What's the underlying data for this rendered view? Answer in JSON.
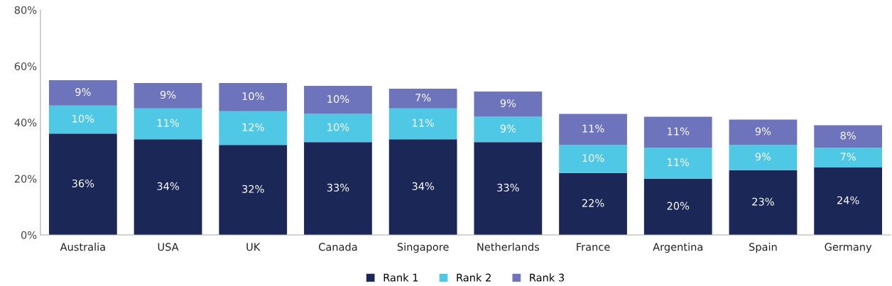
{
  "chart_data": {
    "type": "bar",
    "stacked": true,
    "categories": [
      "Australia",
      "USA",
      "UK",
      "Canada",
      "Singapore",
      "Netherlands",
      "France",
      "Argentina",
      "Spain",
      "Germany"
    ],
    "series": [
      {
        "name": "Rank 1",
        "color": "#1b2857",
        "values": [
          36,
          34,
          32,
          33,
          34,
          33,
          22,
          20,
          23,
          24
        ],
        "value_labels": [
          "36%",
          "34%",
          "32%",
          "33%",
          "34%",
          "33%",
          "22%",
          "20%",
          "23%",
          "24%"
        ]
      },
      {
        "name": "Rank 2",
        "color": "#4ec8e4",
        "values": [
          10,
          11,
          12,
          10,
          11,
          9,
          10,
          11,
          9,
          7
        ],
        "value_labels": [
          "10%",
          "11%",
          "12%",
          "10%",
          "11%",
          "9%",
          "10%",
          "11%",
          "9%",
          "7%"
        ]
      },
      {
        "name": "Rank 3",
        "color": "#6e74bb",
        "values": [
          9,
          9,
          10,
          10,
          7,
          9,
          11,
          11,
          9,
          8
        ],
        "value_labels": [
          "9%",
          "9%",
          "10%",
          "10%",
          "7%",
          "9%",
          "11%",
          "11%",
          "9%",
          "8%"
        ]
      }
    ],
    "ylim": [
      0,
      80
    ],
    "yticks": [
      {
        "value": 0,
        "label": "0%"
      },
      {
        "value": 20,
        "label": "20%"
      },
      {
        "value": 40,
        "label": "40%"
      },
      {
        "value": 60,
        "label": "60%"
      },
      {
        "value": 80,
        "label": "80%"
      }
    ],
    "grid": false,
    "legend": "bottom"
  }
}
